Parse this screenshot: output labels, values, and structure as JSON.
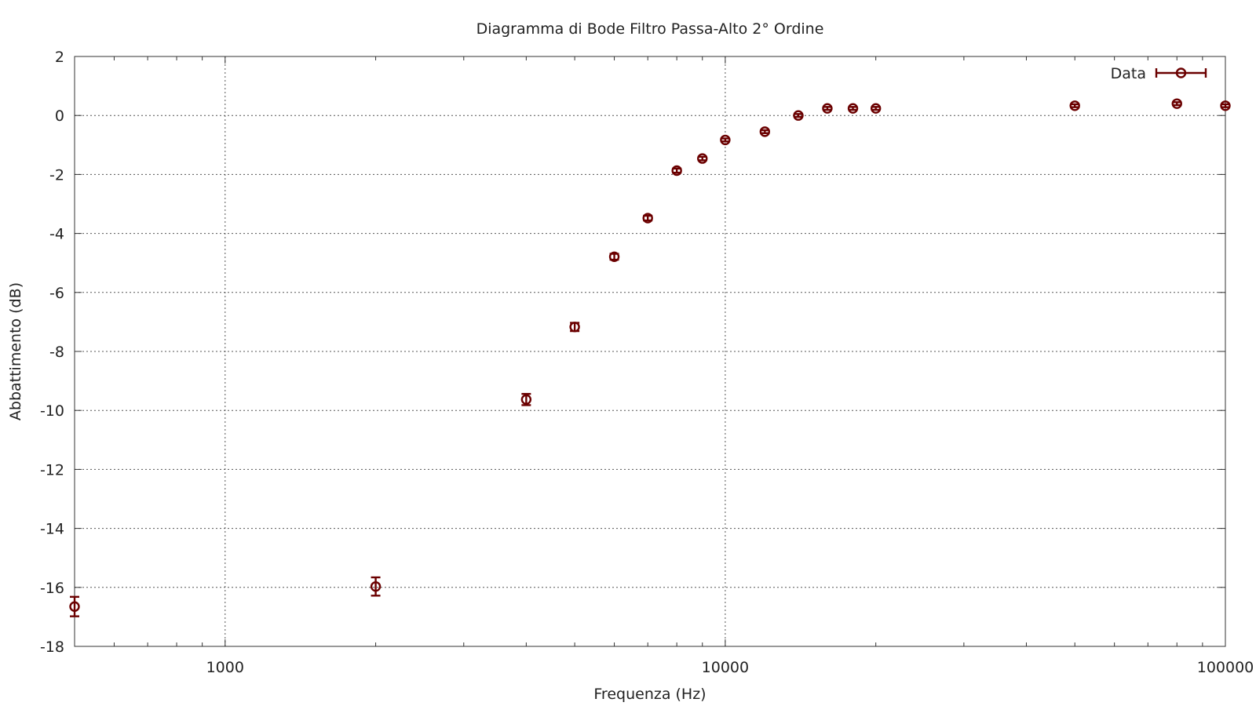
{
  "chart_data": {
    "type": "scatter",
    "title": "Diagramma di Bode Filtro Passa-Alto 2° Ordine",
    "xlabel": "Frequenza (Hz)",
    "ylabel": "Abbattimento (dB)",
    "x_scale": "log",
    "xlim": [
      500,
      100000
    ],
    "ylim": [
      -18,
      2
    ],
    "x_tick_values": [
      1000,
      10000,
      100000
    ],
    "x_tick_labels": [
      "1000",
      "10000",
      "100000"
    ],
    "y_tick_values": [
      2,
      0,
      -2,
      -4,
      -6,
      -8,
      -10,
      -12,
      -14,
      -16,
      -18
    ],
    "y_tick_labels": [
      "2",
      "0",
      "-2",
      "-4",
      "-6",
      "-8",
      "-10",
      "-12",
      "-14",
      "-16",
      "-18"
    ],
    "grid": true,
    "legend_position": "top-right",
    "series": [
      {
        "name": "Data",
        "color": "#6b0000",
        "marker": "open-circle",
        "error_bars": "y",
        "x": [
          500,
          2000,
          4000,
          5000,
          6000,
          7000,
          8000,
          9000,
          10000,
          12000,
          14000,
          16000,
          18000,
          20000,
          50000,
          80000,
          100000
        ],
        "y": [
          -16.65,
          -15.97,
          -9.63,
          -7.17,
          -4.79,
          -3.48,
          -1.87,
          -1.46,
          -0.83,
          -0.55,
          0.0,
          0.24,
          0.24,
          0.24,
          0.33,
          0.4,
          0.33
        ],
        "y_err": [
          0.33,
          0.31,
          0.19,
          0.14,
          0.1,
          0.08,
          0.07,
          0.06,
          0.05,
          0.05,
          0.05,
          0.05,
          0.05,
          0.05,
          0.05,
          0.05,
          0.05
        ]
      }
    ]
  }
}
